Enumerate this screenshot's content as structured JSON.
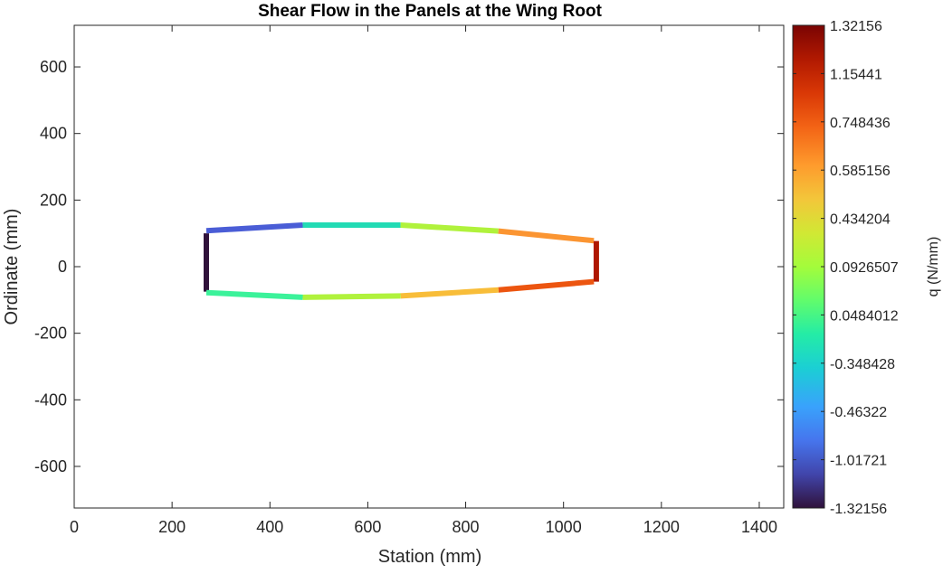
{
  "chart_data": {
    "type": "line",
    "title": "Shear Flow in the Panels at the Wing Root",
    "xlabel": "Station (mm)",
    "ylabel": "Ordinate (mm)",
    "xlim": [
      0,
      1450
    ],
    "ylim": [
      -725,
      725
    ],
    "xticks": [
      0,
      200,
      400,
      600,
      800,
      1000,
      1200,
      1400
    ],
    "yticks": [
      600,
      400,
      200,
      0,
      -200,
      -400,
      -600
    ],
    "grid": false,
    "colorbar": {
      "label": "q (N/mm)",
      "range": [
        -1.32156,
        1.32156
      ],
      "tick_labels": [
        "1.32156",
        "1.15441",
        "0.748436",
        "0.585156",
        "0.434204",
        "0.0926507",
        "0.0484012",
        "-0.348428",
        "-0.46322",
        "-1.01721",
        "-1.32156"
      ],
      "colormap": "turbo"
    },
    "segments": [
      {
        "x": [
          270,
          270
        ],
        "y": [
          100,
          -75
        ],
        "q": -1.32156,
        "color": "#30123b"
      },
      {
        "x": [
          270,
          467
        ],
        "y": [
          108,
          125
        ],
        "q": -1.01721,
        "color": "#4a5dd6"
      },
      {
        "x": [
          467,
          667
        ],
        "y": [
          125,
          125
        ],
        "q": -0.348428,
        "color": "#22dbb4"
      },
      {
        "x": [
          667,
          867
        ],
        "y": [
          125,
          107
        ],
        "q": 0.0926507,
        "color": "#b0f23c"
      },
      {
        "x": [
          867,
          1062
        ],
        "y": [
          107,
          78
        ],
        "q": 0.585156,
        "color": "#fb9532"
      },
      {
        "x": [
          1067,
          1067
        ],
        "y": [
          77,
          -45
        ],
        "q": 1.15441,
        "color": "#af1701"
      },
      {
        "x": [
          1062,
          867
        ],
        "y": [
          -45,
          -70
        ],
        "q": 0.748436,
        "color": "#ec5510"
      },
      {
        "x": [
          867,
          667
        ],
        "y": [
          -70,
          -88
        ],
        "q": 0.434204,
        "color": "#f8bd39"
      },
      {
        "x": [
          667,
          467
        ],
        "y": [
          -88,
          -92
        ],
        "q": 0.0926507,
        "color": "#b0f23c"
      },
      {
        "x": [
          467,
          270
        ],
        "y": [
          -92,
          -78
        ],
        "q": 0.0484012,
        "color": "#3bf29a"
      }
    ]
  }
}
